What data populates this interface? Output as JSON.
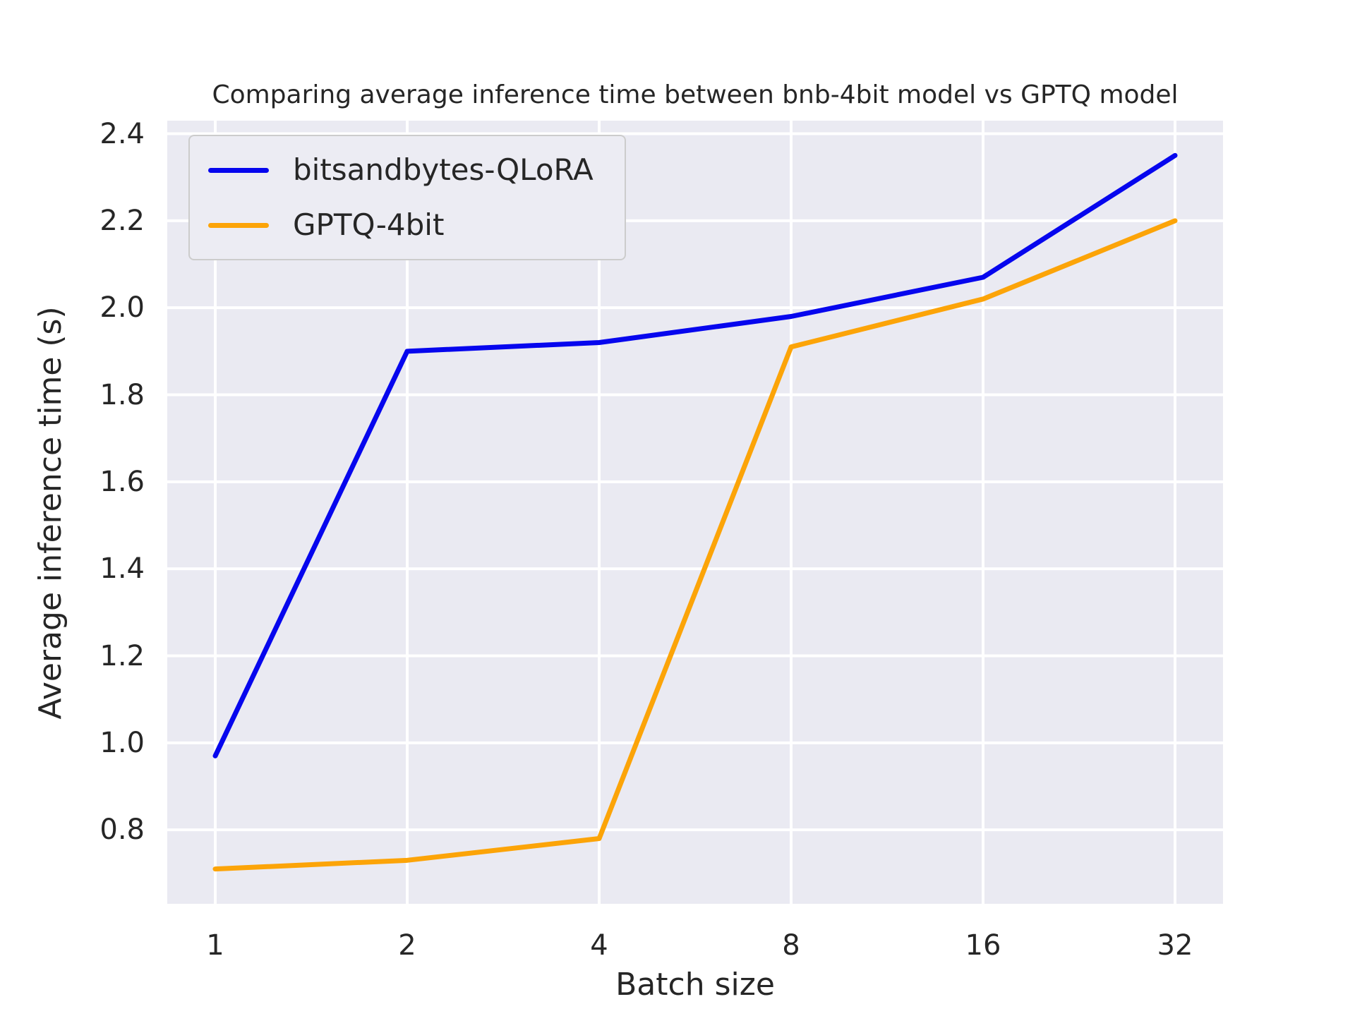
{
  "chart_data": {
    "type": "line",
    "title": "Comparing average inference time between bnb-4bit model vs GPTQ model",
    "xlabel": "Batch size",
    "ylabel": "Average inference time (s)",
    "categories": [
      1,
      2,
      4,
      8,
      16,
      32
    ],
    "x_tick_labels": [
      "1",
      "2",
      "4",
      "8",
      "16",
      "32"
    ],
    "x_scale": "log2, categories evenly spaced",
    "series": [
      {
        "name": "bitsandbytes-QLoRA",
        "color": "#0606ee",
        "values": [
          0.97,
          1.9,
          1.92,
          1.98,
          2.07,
          2.35
        ]
      },
      {
        "name": "GPTQ-4bit",
        "color": "#fca408",
        "values": [
          0.71,
          0.73,
          0.78,
          1.91,
          2.02,
          2.2
        ]
      }
    ],
    "y_ticks": [
      0.8,
      1.0,
      1.2,
      1.4,
      1.6,
      1.8,
      2.0,
      2.2,
      2.4
    ],
    "y_tick_labels": [
      "0.8",
      "1.0",
      "1.2",
      "1.4",
      "1.6",
      "1.8",
      "2.0",
      "2.2",
      "2.4"
    ],
    "ylim": [
      0.63,
      2.43
    ],
    "xlim_index": [
      -0.25,
      5.25
    ],
    "grid": true,
    "legend_position": "upper left",
    "line_width": 7,
    "colors": {
      "figure_background": "#ffffff",
      "axes_background": "#eaeaf2",
      "gridline": "#ffffff",
      "text": "#262626",
      "legend_background": "#ececf3",
      "legend_border": "#cccccc"
    }
  }
}
